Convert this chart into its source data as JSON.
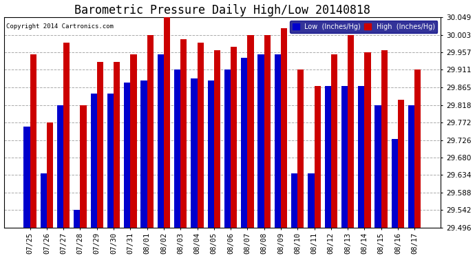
{
  "title": "Barometric Pressure Daily High/Low 20140818",
  "copyright": "Copyright 2014 Cartronics.com",
  "legend_low": "Low  (Inches/Hg)",
  "legend_high": "High  (Inches/Hg)",
  "categories": [
    "07/25",
    "07/26",
    "07/27",
    "07/28",
    "07/29",
    "07/30",
    "07/31",
    "08/01",
    "08/02",
    "08/03",
    "08/04",
    "08/05",
    "08/06",
    "08/07",
    "08/08",
    "08/09",
    "08/10",
    "08/11",
    "08/12",
    "08/13",
    "08/14",
    "08/15",
    "08/16",
    "08/17"
  ],
  "low_values": [
    29.762,
    29.638,
    29.818,
    29.542,
    29.848,
    29.848,
    29.878,
    29.882,
    29.952,
    29.912,
    29.888,
    29.882,
    29.912,
    29.942,
    29.952,
    29.952,
    29.638,
    29.638,
    29.868,
    29.868,
    29.868,
    29.818,
    29.728,
    29.818
  ],
  "high_values": [
    29.952,
    29.772,
    29.982,
    29.818,
    29.932,
    29.932,
    29.952,
    30.003,
    30.049,
    29.992,
    29.982,
    29.962,
    29.972,
    30.003,
    30.003,
    30.02,
    29.912,
    29.868,
    29.952,
    30.003,
    29.957,
    29.962,
    29.832,
    29.912
  ],
  "ylim_min": 29.496,
  "ylim_max": 30.049,
  "yticks": [
    29.496,
    29.542,
    29.588,
    29.634,
    29.68,
    29.726,
    29.772,
    29.818,
    29.865,
    29.911,
    29.957,
    30.003,
    30.049
  ],
  "bar_width": 0.38,
  "blue_color": "#0000cc",
  "red_color": "#cc0000",
  "bg_color": "#ffffff",
  "grid_color": "#aaaaaa",
  "title_fontsize": 12,
  "tick_fontsize": 7.5
}
